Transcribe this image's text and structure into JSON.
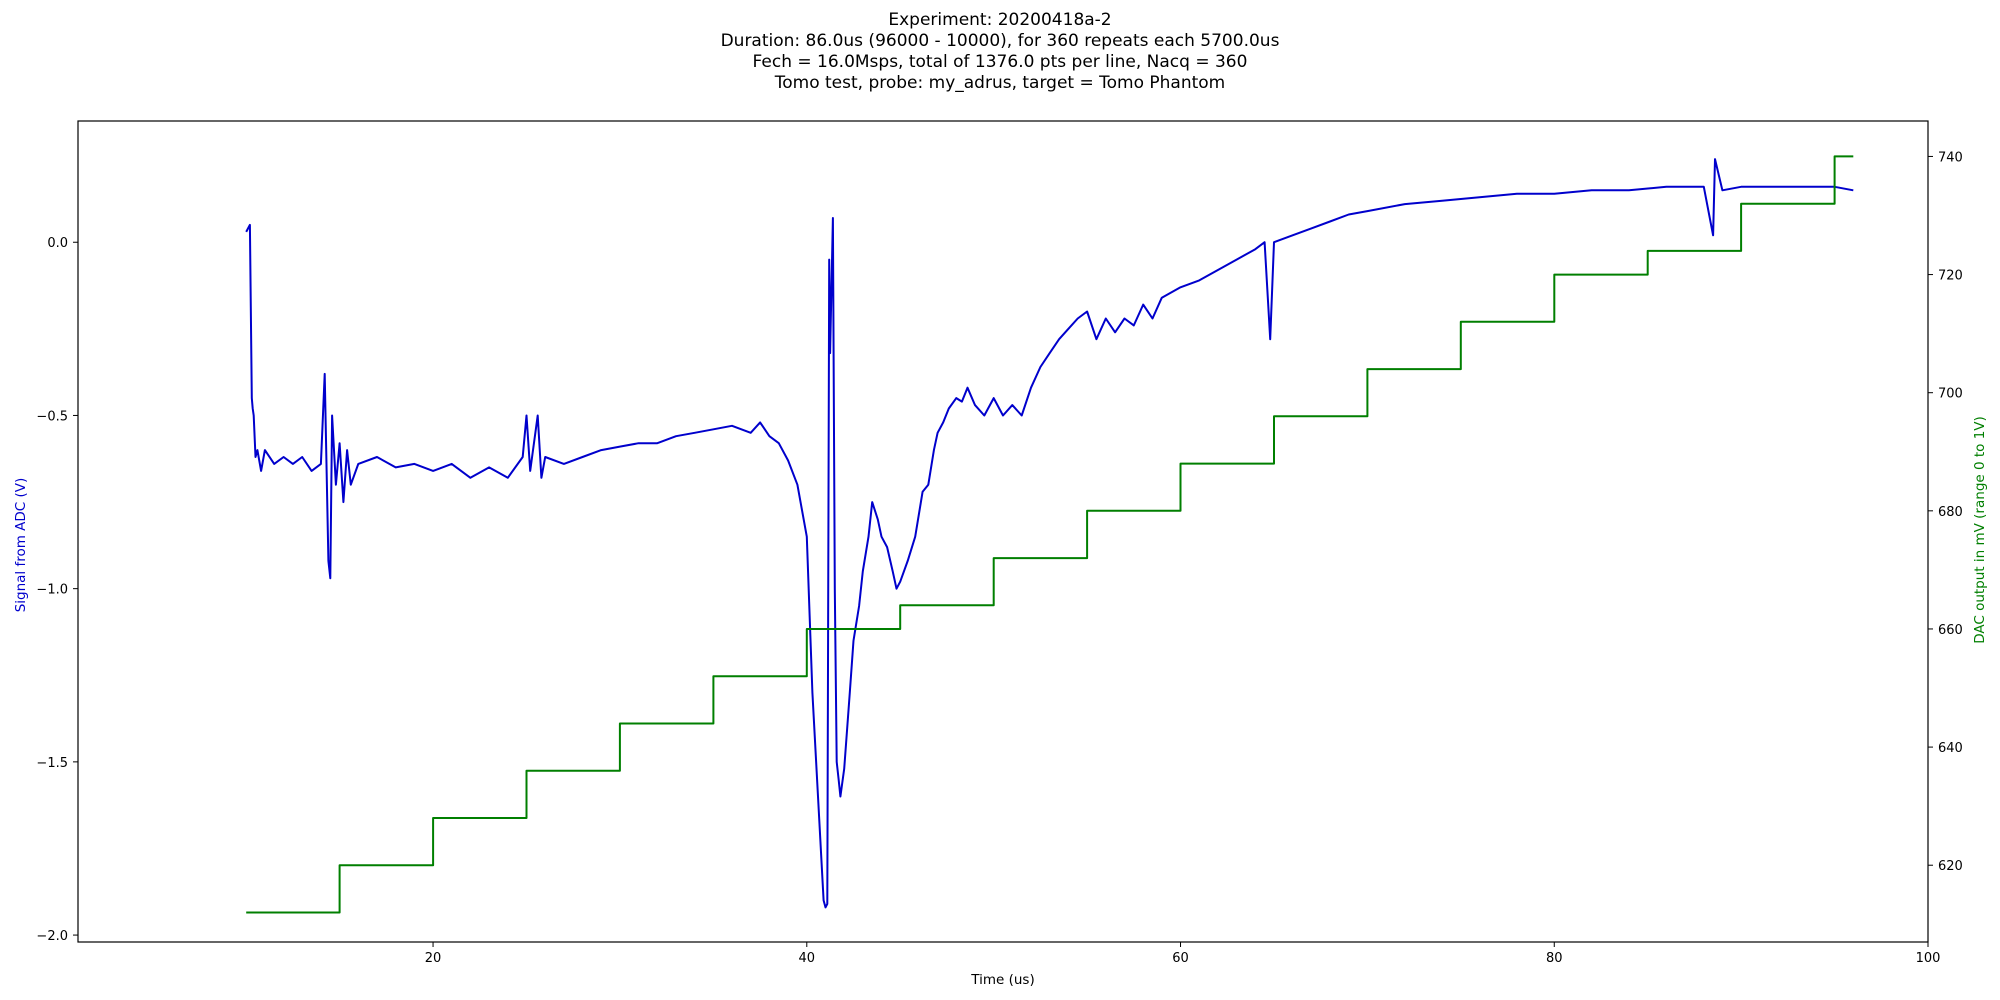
{
  "chart_data": {
    "type": "line",
    "title_lines": [
      "Experiment: 20200418a-2",
      "Duration: 86.0us (96000 - 10000), for 360 repeats each 5700.0us",
      "Fech = 16.0Msps, total of 1376.0 pts per line, Nacq = 360",
      "Tomo test, probe: my_adrus, target = Tomo Phantom"
    ],
    "xlabel": "Time (us)",
    "ylabel_left": "Signal from ADC (V)",
    "ylabel_right": "DAC output in mV (range 0 to 1V)",
    "xlim": [
      1,
      100
    ],
    "ylim_left": [
      -2.02,
      0.35
    ],
    "ylim_right": [
      607,
      746
    ],
    "x_ticks": [
      20,
      40,
      60,
      80,
      100
    ],
    "y_ticks_left": [
      0.0,
      -0.5,
      -1.0,
      -1.5,
      -2.0
    ],
    "y_ticks_left_labels": [
      "0.0",
      "−0.5",
      "−1.0",
      "−1.5",
      "−2.0"
    ],
    "y_ticks_right": [
      620,
      640,
      660,
      680,
      700,
      720,
      740
    ],
    "colors": {
      "signal": "#0000cc",
      "dac": "#007f00",
      "left_label": "#0000cc",
      "right_label": "#007f00"
    },
    "series": [
      {
        "axis": "left",
        "color": "#0000cc",
        "x": [
          10.0,
          10.2,
          10.3,
          10.35,
          10.4,
          10.5,
          10.6,
          10.8,
          11.0,
          11.5,
          12.0,
          12.5,
          13.0,
          13.5,
          14.0,
          14.2,
          14.4,
          14.5,
          14.6,
          14.8,
          15.0,
          15.2,
          15.4,
          15.6,
          16.0,
          17.0,
          18.0,
          19.0,
          20.0,
          21.0,
          22.0,
          23.0,
          24.0,
          24.8,
          25.0,
          25.2,
          25.6,
          25.8,
          26.0,
          27.0,
          28.0,
          29.0,
          30.0,
          31.0,
          32.0,
          33.0,
          34.0,
          35.0,
          36.0,
          37.0,
          37.5,
          38.0,
          38.5,
          39.0,
          39.5,
          40.0,
          40.3,
          40.6,
          40.9,
          41.0,
          41.1,
          41.2,
          41.25,
          41.4,
          41.5,
          41.6,
          41.7,
          41.8,
          42.0,
          42.3,
          42.5,
          42.8,
          43.0,
          43.3,
          43.5,
          43.8,
          44.0,
          44.3,
          44.6,
          44.8,
          45.0,
          45.4,
          45.8,
          46.2,
          46.5,
          46.8,
          47.0,
          47.3,
          47.6,
          48.0,
          48.3,
          48.6,
          49.0,
          49.5,
          50.0,
          50.5,
          51.0,
          51.5,
          52.0,
          52.5,
          53.0,
          53.5,
          54.0,
          54.5,
          55.0,
          55.5,
          56.0,
          56.5,
          57.0,
          57.5,
          58.0,
          58.5,
          59.0,
          60.0,
          61.0,
          62.0,
          63.0,
          64.0,
          64.5,
          64.8,
          65.0,
          66.0,
          67.0,
          68.0,
          69.0,
          70.0,
          72.0,
          74.0,
          76.0,
          78.0,
          80.0,
          82.0,
          84.0,
          86.0,
          88.0,
          88.5,
          88.6,
          89.0,
          90.0,
          92.0,
          94.0,
          95.0,
          96.0
        ],
        "values": [
          0.03,
          0.05,
          -0.45,
          -0.48,
          -0.5,
          -0.62,
          -0.6,
          -0.66,
          -0.6,
          -0.64,
          -0.62,
          -0.64,
          -0.62,
          -0.66,
          -0.64,
          -0.38,
          -0.92,
          -0.97,
          -0.5,
          -0.7,
          -0.58,
          -0.75,
          -0.6,
          -0.7,
          -0.64,
          -0.62,
          -0.65,
          -0.64,
          -0.66,
          -0.64,
          -0.68,
          -0.65,
          -0.68,
          -0.62,
          -0.5,
          -0.66,
          -0.5,
          -0.68,
          -0.62,
          -0.64,
          -0.62,
          -0.6,
          -0.59,
          -0.58,
          -0.58,
          -0.56,
          -0.55,
          -0.54,
          -0.53,
          -0.55,
          -0.52,
          -0.56,
          -0.58,
          -0.63,
          -0.7,
          -0.85,
          -1.3,
          -1.6,
          -1.9,
          -1.92,
          -1.91,
          -0.05,
          -0.32,
          0.07,
          -1.0,
          -1.5,
          -1.55,
          -1.6,
          -1.52,
          -1.3,
          -1.15,
          -1.05,
          -0.95,
          -0.85,
          -0.75,
          -0.8,
          -0.85,
          -0.88,
          -0.95,
          -1.0,
          -0.98,
          -0.92,
          -0.85,
          -0.72,
          -0.7,
          -0.6,
          -0.55,
          -0.52,
          -0.48,
          -0.45,
          -0.46,
          -0.42,
          -0.47,
          -0.5,
          -0.45,
          -0.5,
          -0.47,
          -0.5,
          -0.42,
          -0.36,
          -0.32,
          -0.28,
          -0.25,
          -0.22,
          -0.2,
          -0.28,
          -0.22,
          -0.26,
          -0.22,
          -0.24,
          -0.18,
          -0.22,
          -0.16,
          -0.13,
          -0.11,
          -0.08,
          -0.05,
          -0.02,
          0.0,
          -0.28,
          0.0,
          0.02,
          0.04,
          0.06,
          0.08,
          0.09,
          0.11,
          0.12,
          0.13,
          0.14,
          0.14,
          0.15,
          0.15,
          0.16,
          0.16,
          0.02,
          0.24,
          0.15,
          0.16,
          0.16,
          0.16,
          0.16,
          0.15
        ]
      },
      {
        "axis": "right",
        "color": "#007f00",
        "x": [
          10,
          15,
          15,
          20,
          20,
          25,
          25,
          30,
          30,
          35,
          35,
          40,
          40,
          45,
          45,
          50,
          50,
          55,
          55,
          60,
          60,
          65,
          65,
          70,
          70,
          75,
          75,
          80,
          80,
          85,
          85,
          90,
          90,
          95,
          95,
          96
        ],
        "values": [
          612,
          612,
          620,
          620,
          628,
          628,
          636,
          636,
          644,
          644,
          652,
          652,
          660,
          660,
          664,
          664,
          672,
          672,
          680,
          680,
          688,
          688,
          696,
          696,
          704,
          704,
          712,
          712,
          720,
          720,
          724,
          724,
          732,
          732,
          740,
          740
        ]
      }
    ]
  }
}
